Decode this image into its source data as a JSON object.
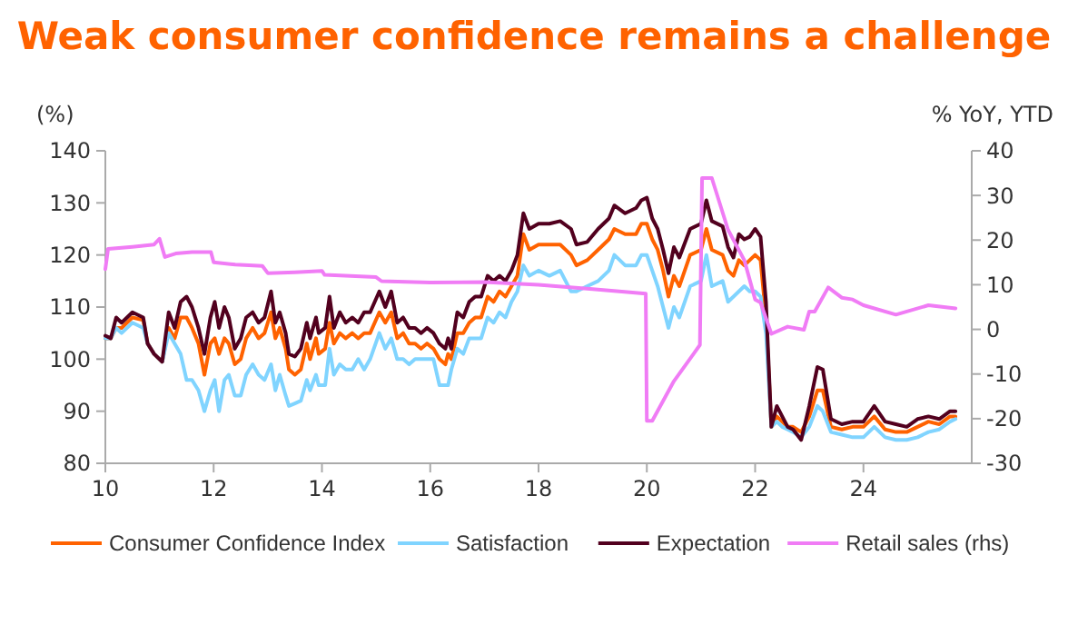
{
  "chart_data": {
    "type": "line",
    "title": "Weak consumer confidence remains a challenge",
    "ylabel": "(%)",
    "y2label": "% YoY, YTD",
    "xlim": [
      10,
      26
    ],
    "xticks": [
      10,
      12,
      14,
      16,
      18,
      20,
      22,
      24
    ],
    "ylim": [
      80,
      140
    ],
    "yticks": [
      80,
      90,
      100,
      110,
      120,
      130,
      140
    ],
    "y2lim": [
      -30,
      40
    ],
    "y2ticks": [
      -30,
      -20,
      -10,
      0,
      10,
      20,
      30,
      40
    ],
    "grid": false,
    "legend": "bottom",
    "line_style": "solid",
    "marker": "none",
    "x": [
      10,
      10.1,
      10.2,
      10.3,
      10.5,
      10.7,
      10.78,
      10.9,
      11.05,
      11.17,
      11.28,
      11.39,
      11.5,
      11.6,
      11.72,
      11.83,
      11.94,
      12.02,
      12.1,
      12.2,
      12.28,
      12.39,
      12.5,
      12.6,
      12.72,
      12.83,
      12.94,
      13.06,
      13.14,
      13.22,
      13.33,
      13.39,
      13.5,
      13.61,
      13.72,
      13.78,
      13.89,
      13.94,
      14.06,
      14.14,
      14.22,
      14.33,
      14.44,
      14.56,
      14.67,
      14.78,
      14.89,
      15.06,
      15.17,
      15.28,
      15.39,
      15.5,
      15.61,
      15.72,
      15.83,
      15.94,
      16.06,
      16.17,
      16.28,
      16.33,
      16.39,
      16.5,
      16.61,
      16.72,
      16.83,
      16.94,
      17.06,
      17.17,
      17.28,
      17.39,
      17.5,
      17.61,
      17.72,
      17.83,
      18.0,
      18.2,
      18.4,
      18.6,
      18.7,
      18.9,
      19.1,
      19.3,
      19.4,
      19.6,
      19.8,
      19.9,
      20.0,
      20.1,
      20.2,
      20.3,
      20.4,
      20.5,
      20.6,
      20.8,
      21.0,
      21.1,
      21.2,
      21.4,
      21.5,
      21.6,
      21.7,
      21.8,
      21.9,
      22.0,
      22.1,
      22.2,
      22.3,
      22.4,
      22.5,
      22.6,
      22.7,
      22.85,
      23.0,
      23.15,
      23.25,
      23.4,
      23.6,
      23.8,
      24.0,
      24.2,
      24.4,
      24.6,
      24.8,
      25.0,
      25.2,
      25.4,
      25.6,
      25.7
    ],
    "series": [
      {
        "name": "Consumer Confidence Index",
        "color": "#ff6200",
        "values": [
          104,
          104,
          106,
          106,
          108,
          107.5,
          103,
          101,
          99.5,
          106,
          104,
          108,
          108,
          106,
          103,
          97,
          103,
          104,
          101,
          104,
          103,
          99,
          100,
          104,
          106,
          104,
          105,
          109,
          104,
          106,
          102,
          98,
          97,
          98,
          103,
          100,
          104,
          101,
          102,
          107,
          103,
          105,
          104,
          105,
          104,
          105,
          105,
          109,
          107,
          109,
          104,
          105,
          103,
          103,
          102,
          103,
          102,
          100,
          99,
          101,
          100,
          105,
          105,
          107,
          108,
          108,
          112,
          111,
          113,
          112,
          114,
          116,
          124,
          121,
          122,
          122,
          122,
          120,
          118,
          119,
          121,
          123,
          125,
          124,
          124,
          126,
          126,
          123,
          121,
          117,
          112,
          116,
          114,
          120,
          121,
          125,
          121,
          120,
          117,
          116,
          119,
          118,
          119,
          120,
          119,
          108,
          87,
          89,
          88,
          87,
          87,
          86,
          89,
          94,
          94,
          87,
          86.5,
          87,
          87,
          89,
          86.5,
          86,
          86,
          87,
          88,
          87.5,
          89,
          89
        ]
      },
      {
        "name": "Satisfaction",
        "color": "#80d4ff",
        "values": [
          104,
          104,
          106,
          105,
          107,
          106,
          103,
          101,
          99.5,
          105,
          103,
          101,
          96,
          96,
          94,
          90,
          94,
          96,
          90,
          96,
          97,
          93,
          93,
          97,
          99,
          97,
          96,
          99,
          94,
          97,
          93,
          91,
          91.5,
          92,
          96,
          94,
          97,
          95,
          95,
          102,
          97,
          99,
          98,
          98,
          100,
          98,
          100,
          105,
          102,
          104,
          100,
          100,
          99,
          100,
          100,
          100,
          100,
          95,
          95,
          95,
          98,
          102,
          101,
          104,
          104,
          104,
          108,
          107,
          109,
          108,
          111,
          113,
          118,
          116,
          117,
          116,
          117,
          113,
          113,
          114,
          115,
          117,
          120,
          118,
          118,
          120,
          120,
          117,
          114,
          110,
          106,
          110,
          108,
          114,
          115,
          120,
          114,
          115,
          111,
          112,
          113,
          114,
          113,
          113,
          112,
          105,
          87,
          88,
          87,
          86.5,
          86,
          85,
          87,
          91,
          90,
          86,
          85.5,
          85,
          85,
          87,
          85,
          84.5,
          84.5,
          85,
          86,
          86.5,
          88,
          88.5
        ]
      },
      {
        "name": "Expectation",
        "color": "#52001e",
        "values": [
          104.5,
          104,
          108,
          107,
          109,
          108,
          103,
          101,
          99.5,
          109,
          106,
          111,
          112,
          110,
          106,
          101,
          108,
          111,
          106,
          110,
          108,
          102,
          104,
          108,
          109,
          107,
          108,
          113,
          107,
          109,
          105,
          101,
          100.5,
          102,
          107,
          104,
          108,
          105,
          106,
          112,
          106,
          109,
          107,
          108,
          107,
          109,
          109,
          113,
          110,
          113,
          107,
          108,
          106,
          106,
          105,
          106,
          105,
          103,
          102,
          104,
          102,
          109,
          108,
          111,
          112,
          112,
          116,
          115,
          116,
          115,
          117,
          120,
          128,
          125,
          126,
          126,
          126.5,
          125,
          122,
          122.5,
          125,
          127,
          129.5,
          128,
          129,
          130.5,
          131,
          127,
          125,
          121,
          116.5,
          121.5,
          119.5,
          125,
          126,
          130.5,
          126.5,
          125.5,
          121.5,
          119.5,
          124,
          123,
          123.5,
          125,
          123.5,
          111,
          87,
          91,
          89,
          87,
          86.5,
          84.5,
          91,
          98.5,
          98,
          88.5,
          87.5,
          88,
          88,
          91,
          88,
          87.5,
          87,
          88.5,
          89,
          88.5,
          90,
          90
        ]
      },
      {
        "name": "Retail sales (rhs)",
        "color": "#f07cf5",
        "axis": "y2",
        "x": [
          10,
          10.05,
          10.5,
          10.9,
          11.0,
          11.1,
          11.3,
          11.6,
          11.95,
          12.0,
          12.4,
          12.9,
          13.0,
          13.5,
          14.0,
          14.05,
          15.0,
          15.1,
          16.0,
          17.0,
          18.0,
          19.0,
          19.98,
          20.0,
          20.1,
          20.5,
          20.98,
          21.02,
          21.2,
          21.5,
          21.8,
          22.0,
          22.1,
          22.3,
          22.6,
          22.9,
          23.0,
          23.1,
          23.35,
          23.6,
          23.8,
          24.0,
          24.6,
          25.2,
          25.7
        ],
        "values": [
          13.5,
          18,
          18.5,
          19,
          20.3,
          16.2,
          17,
          17.3,
          17.3,
          15,
          14.5,
          14.2,
          12.6,
          12.8,
          13.1,
          12.2,
          11.7,
          10.8,
          10.5,
          10.6,
          10,
          9,
          8,
          -20.5,
          -20.5,
          -11.6,
          -3.5,
          33.9,
          33.9,
          22.3,
          15.5,
          6.7,
          6,
          -1,
          0.6,
          -0.1,
          4,
          4,
          9.4,
          7.1,
          6.7,
          5.4,
          3.3,
          5.4,
          4.7
        ]
      }
    ]
  }
}
